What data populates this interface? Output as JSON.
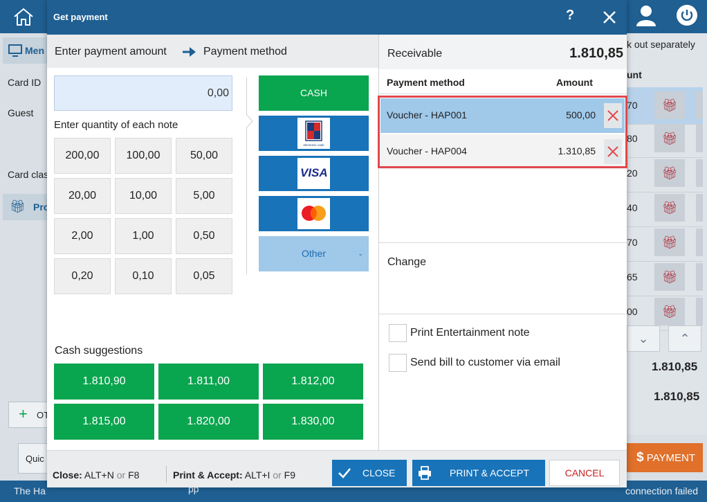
{
  "background": {
    "left_labels": {
      "member": "Men",
      "card_id": "Card ID",
      "guest": "Guest",
      "card_class": "Card clas",
      "promotions": "Pro",
      "other": "OT",
      "quick": "Quic"
    },
    "right": {
      "checkout_label": "k out separately",
      "amount_header": "unt",
      "row_values": [
        "70",
        "80",
        "20",
        "40",
        "70",
        "65",
        "00"
      ],
      "total_1": "1.810,85",
      "total_2": "1.810,85",
      "payment_button": "PAYMENT",
      "payment_symbol": "$"
    },
    "status": {
      "left_text": "The Ha",
      "middle_fragment": "pp",
      "right_text": "connection failed"
    }
  },
  "dialog": {
    "title": "Get payment",
    "help": "?",
    "steps": {
      "step1": "Enter payment amount",
      "step2": "Payment method"
    },
    "amount_value": "0,00",
    "notes_label": "Enter quantity of each note",
    "notes": [
      "200,00",
      "100,00",
      "50,00",
      "20,00",
      "10,00",
      "5,00",
      "2,00",
      "1,00",
      "0,50",
      "0,20",
      "0,10",
      "0,05"
    ],
    "payment_methods": {
      "cash": "CASH",
      "ec_caption": "electronic cash",
      "visa": "VISA",
      "other": "Other"
    },
    "cash_suggestions_label": "Cash suggestions",
    "cash_suggestions": [
      "1.810,90",
      "1.811,00",
      "1.812,00",
      "1.815,00",
      "1.820,00",
      "1.830,00"
    ],
    "receivable": {
      "label": "Receivable",
      "value": "1.810,85"
    },
    "payments_table": {
      "col_method": "Payment method",
      "col_amount": "Amount",
      "rows": [
        {
          "method": "Voucher - HAP001",
          "amount": "500,00"
        },
        {
          "method": "Voucher - HAP004",
          "amount": "1.310,85"
        }
      ]
    },
    "change_label": "Change",
    "options": {
      "entertainment_note": "Print Entertainment note",
      "send_email": "Send bill to customer via email"
    },
    "footer": {
      "close_shortcut_label": "Close:",
      "close_shortcut_key1": "ALT+N",
      "or": "or",
      "close_shortcut_key2": "F8",
      "print_shortcut_label": "Print & Accept:",
      "print_shortcut_key1": "ALT+I",
      "print_shortcut_key2": "F9",
      "close_button": "CLOSE",
      "print_accept_button": "PRINT & ACCEPT",
      "cancel_button": "CANCEL"
    }
  },
  "colors": {
    "titlebar": "#1f5f92",
    "green": "#0aa54f",
    "blue": "#1873b9",
    "selected_row": "#9fc8e9",
    "highlight_border": "#e1474b",
    "cancel_text": "#c81e1e",
    "payment_orange": "#e0702a"
  },
  "icons": [
    "home-icon",
    "user-icon",
    "power-icon",
    "help-icon",
    "close-icon",
    "arrow-right-icon",
    "ec-card-icon",
    "visa-card-icon",
    "mastercard-icon",
    "chevron-down-icon",
    "delete-x-icon",
    "checkmark-icon",
    "printer-icon",
    "gift-icon",
    "plus-icon",
    "chevron-up-icon"
  ]
}
